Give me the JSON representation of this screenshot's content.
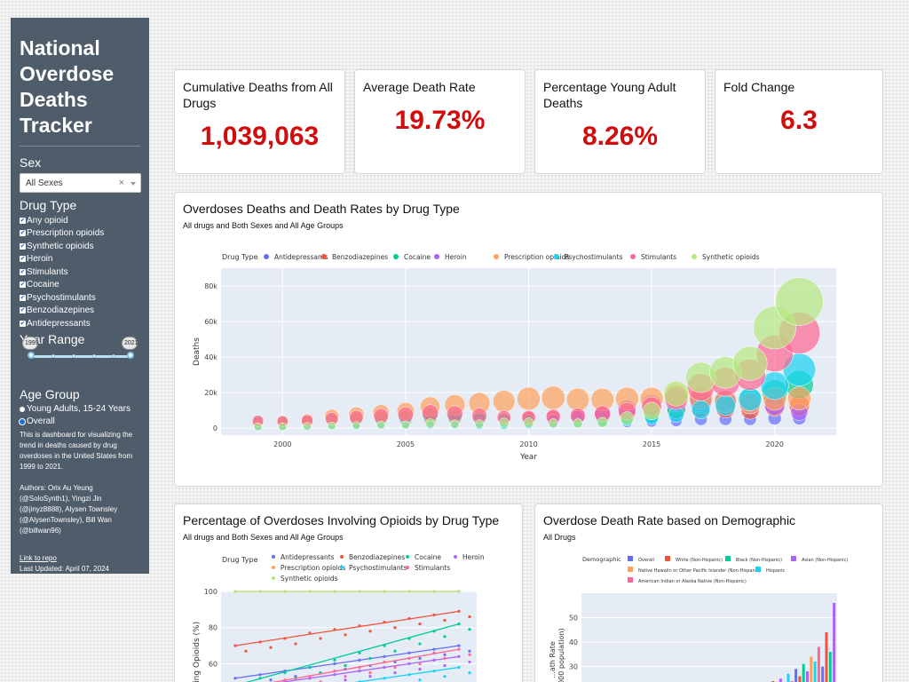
{
  "sidebar": {
    "title_lines": [
      "National",
      "Overdose",
      "Deaths",
      "Tracker"
    ],
    "sex_label": "Sex",
    "sex_value": "All Sexes",
    "drug_type_label": "Drug Type",
    "drug_types": [
      {
        "label": "Any opioid",
        "checked": true
      },
      {
        "label": "Prescription opioids",
        "checked": true
      },
      {
        "label": "Synthetic opioids",
        "checked": true
      },
      {
        "label": "Heroin",
        "checked": true
      },
      {
        "label": "Stimulants",
        "checked": true
      },
      {
        "label": "Cocaine",
        "checked": true
      },
      {
        "label": "Psychostimulants",
        "checked": true
      },
      {
        "label": "Benzodiazepines",
        "checked": true
      },
      {
        "label": "Antidepressants",
        "checked": true
      }
    ],
    "year_range_label": "Year Range",
    "year_start": "1999",
    "year_end": "2021",
    "age_group_label": "Age Group",
    "age_options": [
      {
        "label": "Young Adults, 15-24 Years",
        "selected": false
      },
      {
        "label": "Overall",
        "selected": true
      }
    ],
    "description": "This is dashboard for visualizing the trend in deaths caused by drug overdoses in the United States from 1999 to 2021.",
    "authors": "Authors: Orix Au Yeung (@SoloSynth1), Yingzi Jin (@jinyz8888), Alysen Townsley (@AlysenTownsley), Bill Wan (@billwan96)",
    "repo_link": "Link to repo",
    "last_updated": "Last Updated: April 07, 2024"
  },
  "kpis": [
    {
      "label": "Cumulative Deaths from All Drugs",
      "value": "1,039,063"
    },
    {
      "label": "Average Death Rate",
      "value": "19.73%"
    },
    {
      "label": "Percentage Young Adult Deaths",
      "value": "8.26%"
    },
    {
      "label": "Fold Change",
      "value": "6.3"
    }
  ],
  "colors": {
    "sidebar_bg": "#4f5d6b",
    "kpi_value": "#d00c0c",
    "plot_bg": "#e5ecf6"
  },
  "chart1": {
    "title": "Overdoses Deaths and Death Rates by Drug Type",
    "subtitle": "All drugs and Both Sexes and All Age Groups"
  },
  "chart2": {
    "title": "Percentage of Overdoses Involving Opioids by Drug Type",
    "subtitle": "All drugs and Both Sexes and All Age Groups"
  },
  "chart3": {
    "title": "Overdose Death Rate based on Demographic",
    "subtitle": "All Drugs"
  },
  "chart_data": [
    {
      "type": "scatter",
      "subtype": "bubble",
      "legend_title": "Drug Type",
      "legend_placement": "top",
      "xlabel": "Year",
      "ylabel": "Deaths",
      "xlim": [
        1997.5,
        2022.5
      ],
      "ylim": [
        -4000,
        90000
      ],
      "x_ticks": [
        2000,
        2005,
        2010,
        2015,
        2020
      ],
      "y_ticks": [
        0,
        20000,
        40000,
        60000,
        80000
      ],
      "y_tick_labels": [
        "0",
        "20k",
        "40k",
        "60k",
        "80k"
      ],
      "grid": true,
      "series": [
        {
          "name": "Antidepressants",
          "color": "#636efa",
          "x": [
            1999,
            2000,
            2001,
            2002,
            2003,
            2004,
            2005,
            2006,
            2007,
            2008,
            2009,
            2010,
            2011,
            2012,
            2013,
            2014,
            2015,
            2016,
            2017,
            2018,
            2019,
            2020,
            2021
          ],
          "values": [
            1200,
            1300,
            1400,
            1600,
            1800,
            1900,
            2000,
            2100,
            2300,
            2400,
            2500,
            2600,
            2700,
            2800,
            2900,
            3000,
            3500,
            4000,
            5000,
            5000,
            5000,
            5500,
            5500
          ]
        },
        {
          "name": "Benzodiazepines",
          "color": "#ef553b",
          "x": [
            1999,
            2000,
            2001,
            2002,
            2003,
            2004,
            2005,
            2006,
            2007,
            2008,
            2009,
            2010,
            2011,
            2012,
            2013,
            2014,
            2015,
            2016,
            2017,
            2018,
            2019,
            2020,
            2021
          ],
          "values": [
            1100,
            1300,
            1600,
            2000,
            2400,
            2800,
            3500,
            4000,
            4200,
            4500,
            5000,
            5500,
            6000,
            6500,
            7000,
            7500,
            9000,
            10500,
            11500,
            11000,
            10000,
            12000,
            12500
          ]
        },
        {
          "name": "Cocaine",
          "color": "#00cc96",
          "x": [
            1999,
            2000,
            2001,
            2002,
            2003,
            2004,
            2005,
            2006,
            2007,
            2008,
            2009,
            2010,
            2011,
            2012,
            2013,
            2014,
            2015,
            2016,
            2017,
            2018,
            2019,
            2020,
            2021
          ],
          "values": [
            3800,
            3500,
            3800,
            4500,
            5000,
            5500,
            6000,
            7000,
            6500,
            5500,
            4500,
            4200,
            4500,
            4500,
            5000,
            5500,
            7000,
            10500,
            14000,
            15000,
            16000,
            20000,
            24500
          ]
        },
        {
          "name": "Heroin",
          "color": "#ab63fa",
          "x": [
            1999,
            2000,
            2001,
            2002,
            2003,
            2004,
            2005,
            2006,
            2007,
            2008,
            2009,
            2010,
            2011,
            2012,
            2013,
            2014,
            2015,
            2016,
            2017,
            2018,
            2019,
            2020,
            2021
          ],
          "values": [
            2000,
            1800,
            1800,
            2100,
            2000,
            1900,
            2000,
            2100,
            2400,
            3000,
            3300,
            3000,
            4400,
            6000,
            8300,
            10600,
            13000,
            15500,
            15500,
            15000,
            14000,
            13000,
            9000
          ]
        },
        {
          "name": "Prescription opioids",
          "color": "#ffa15a",
          "x": [
            1999,
            2000,
            2001,
            2002,
            2003,
            2004,
            2005,
            2006,
            2007,
            2008,
            2009,
            2010,
            2011,
            2012,
            2013,
            2014,
            2015,
            2016,
            2017,
            2018,
            2019,
            2020,
            2021
          ],
          "values": [
            3400,
            3800,
            4600,
            6500,
            7500,
            8500,
            9500,
            12000,
            13000,
            14000,
            15000,
            16500,
            17000,
            16000,
            16000,
            16500,
            16500,
            18000,
            17000,
            15000,
            14000,
            16500,
            16700
          ]
        },
        {
          "name": "Psychostimulants",
          "color": "#19d3f3",
          "x": [
            1999,
            2000,
            2001,
            2002,
            2003,
            2004,
            2005,
            2006,
            2007,
            2008,
            2009,
            2010,
            2011,
            2012,
            2013,
            2014,
            2015,
            2016,
            2017,
            2018,
            2019,
            2020,
            2021
          ],
          "values": [
            500,
            600,
            800,
            1000,
            1300,
            1600,
            1800,
            1800,
            1700,
            1500,
            1500,
            1800,
            2300,
            3000,
            3600,
            4300,
            5700,
            7500,
            10300,
            12700,
            16200,
            23800,
            32900
          ]
        },
        {
          "name": "Stimulants",
          "color": "#ff6692",
          "x": [
            1999,
            2000,
            2001,
            2002,
            2003,
            2004,
            2005,
            2006,
            2007,
            2008,
            2009,
            2010,
            2011,
            2012,
            2013,
            2014,
            2015,
            2016,
            2017,
            2018,
            2019,
            2020,
            2021
          ],
          "values": [
            4000,
            3800,
            4200,
            5200,
            6000,
            6800,
            7500,
            8500,
            8000,
            7000,
            6000,
            6000,
            6500,
            7000,
            8000,
            9500,
            12000,
            17000,
            23000,
            26000,
            30000,
            42000,
            53500
          ]
        },
        {
          "name": "Synthetic opioids",
          "color": "#b6e880",
          "x": [
            1999,
            2000,
            2001,
            2002,
            2003,
            2004,
            2005,
            2006,
            2007,
            2008,
            2009,
            2010,
            2011,
            2012,
            2013,
            2014,
            2015,
            2016,
            2017,
            2018,
            2019,
            2020,
            2021
          ],
          "values": [
            700,
            800,
            900,
            1200,
            1400,
            1700,
            1700,
            2700,
            2200,
            2300,
            2900,
            3000,
            2700,
            2600,
            3100,
            5500,
            9600,
            19400,
            28500,
            31300,
            36400,
            56500,
            71200
          ]
        }
      ]
    },
    {
      "type": "scatter",
      "subtype": "scatter with trend lines",
      "legend_title": "Drug Type",
      "legend_placement": "top",
      "ylabel": "...volving Opioids (%)",
      "ylim": [
        45,
        100
      ],
      "x_ticks": [],
      "y_ticks": [
        60,
        80,
        100
      ],
      "grid": true,
      "series": [
        {
          "name": "Antidepressants",
          "color": "#636efa",
          "values": [
            52,
            54,
            56,
            58,
            60,
            62,
            64,
            66,
            68,
            70
          ]
        },
        {
          "name": "Benzodiazepines",
          "color": "#ef553b",
          "values": [
            70,
            72,
            74,
            77,
            79,
            81,
            83,
            85,
            87,
            89
          ]
        },
        {
          "name": "Cocaine",
          "color": "#00cc96",
          "values": [
            48,
            52,
            55,
            58,
            62,
            66,
            70,
            74,
            78,
            82
          ]
        },
        {
          "name": "Heroin",
          "color": "#ab63fa",
          "values": [
            46,
            48,
            50,
            52,
            54,
            56,
            58,
            60,
            62,
            64
          ]
        },
        {
          "name": "Prescription opioids",
          "color": "#ffa15a",
          "values": [
            100,
            100,
            100,
            100,
            100,
            100,
            100,
            100,
            100,
            100
          ]
        },
        {
          "name": "Psychostimulants",
          "color": "#19d3f3",
          "values": [
            40,
            42,
            44,
            46,
            48,
            50,
            52,
            54,
            56,
            58
          ]
        },
        {
          "name": "Stimulants",
          "color": "#ff6692",
          "values": [
            46,
            48,
            51,
            53,
            56,
            58,
            61,
            63,
            66,
            68
          ]
        },
        {
          "name": "Synthetic opioids",
          "color": "#b6e880",
          "values": [
            100,
            100,
            100,
            100,
            100,
            100,
            100,
            100,
            100,
            100
          ]
        }
      ]
    },
    {
      "type": "bar",
      "legend_title": "Demographic",
      "legend_placement": "top",
      "ylabel": "...ath Rate ...000 population)",
      "ylim": [
        20,
        60
      ],
      "y_ticks": [
        30,
        40,
        50
      ],
      "grid": true,
      "series": [
        {
          "name": "Overall",
          "color": "#636efa"
        },
        {
          "name": "White (Non-Hispanic)",
          "color": "#ef553b"
        },
        {
          "name": "Black (Non-Hispanic)",
          "color": "#00cc96"
        },
        {
          "name": "Asian (Non-Hispanic)",
          "color": "#ab63fa"
        },
        {
          "name": "Native Hawaiin or Other Pacific Islander (Non-Hispanic)",
          "color": "#ffa15a"
        },
        {
          "name": "Hispanic",
          "color": "#19d3f3"
        },
        {
          "name": "American Indian or Alaska Native (Non-Hispanic)",
          "color": "#ff6692"
        }
      ],
      "visible_bar_values": [
        22,
        24,
        21,
        25,
        23,
        27,
        24,
        29,
        26,
        31,
        28,
        34,
        32,
        38,
        30,
        44,
        36,
        56
      ]
    }
  ]
}
